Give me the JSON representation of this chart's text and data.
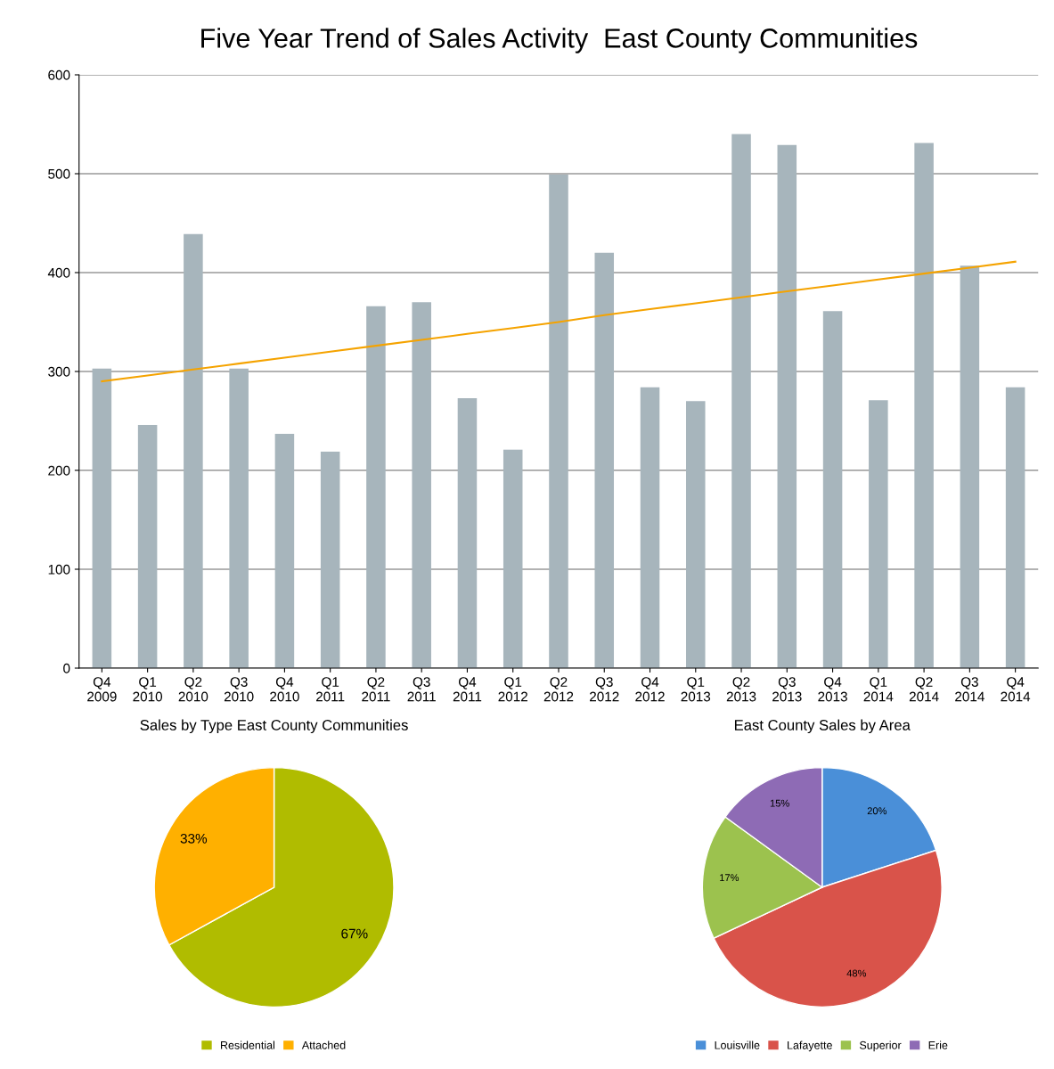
{
  "chart_data": [
    {
      "type": "bar",
      "title": "Five Year Trend of Sales Activity  East County Communities",
      "categories": [
        "Q4\n2009",
        "Q1\n2010",
        "Q2\n2010",
        "Q3\n2010",
        "Q4\n2010",
        "Q1\n2011",
        "Q2\n2011",
        "Q3\n2011",
        "Q4\n2011",
        "Q1\n2012",
        "Q2\n2012",
        "Q3\n2012",
        "Q4\n2012",
        "Q1\n2013",
        "Q2\n2013",
        "Q3\n2013",
        "Q4\n2013",
        "Q1\n2014",
        "Q2\n2014",
        "Q3\n2014",
        "Q4\n2014"
      ],
      "series": [
        {
          "type": "bar",
          "color": "#a7b5bc",
          "values": [
            303,
            246,
            439,
            303,
            237,
            219,
            366,
            370,
            273,
            221,
            499,
            420,
            284,
            270,
            540,
            529,
            361,
            271,
            531,
            407,
            284
          ]
        },
        {
          "type": "line",
          "color": "#f5a300",
          "values": [
            290,
            296,
            302,
            308,
            314,
            320,
            326,
            332,
            338,
            344,
            350,
            357,
            363,
            369,
            375,
            381,
            387,
            393,
            399,
            405,
            411
          ]
        }
      ],
      "ylim": [
        0,
        600
      ],
      "yticks": [
        0,
        100,
        200,
        300,
        400,
        500,
        600
      ],
      "grid": "y",
      "legend": false
    },
    {
      "type": "pie",
      "title": "Sales by Type East County Communities",
      "categories": [
        "Residential",
        "Attached"
      ],
      "values": [
        67,
        33
      ],
      "colors": [
        "#b0bc00",
        "#ffb000"
      ],
      "value_labels": [
        "67%",
        "33%"
      ],
      "legend": "bottom"
    },
    {
      "type": "pie",
      "title": "East County Sales by Area",
      "categories": [
        "Louisville",
        "Lafayette",
        "Superior",
        "Erie"
      ],
      "values": [
        20,
        48,
        17,
        15
      ],
      "colors": [
        "#4a8fd8",
        "#d9534a",
        "#9cc24e",
        "#8e6bb5"
      ],
      "value_labels": [
        "20%",
        "48%",
        "17%",
        "15%"
      ],
      "legend": "bottom"
    }
  ]
}
